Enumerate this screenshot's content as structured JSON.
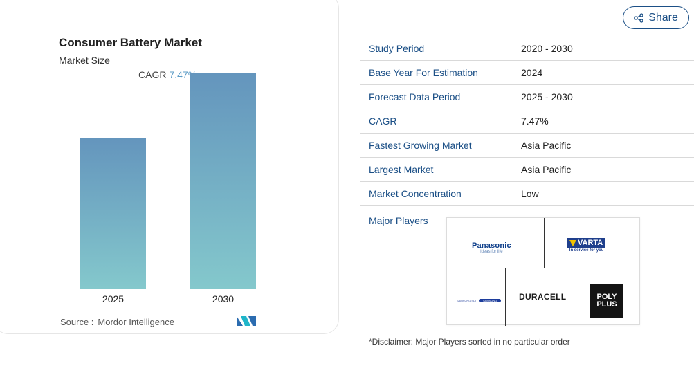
{
  "card": {
    "title": "Consumer Battery Market",
    "subtitle": "Market Size",
    "cagr_label": "CAGR",
    "cagr_value": "7.47%",
    "source_label": "Source :",
    "source_value": "Mordor Intelligence",
    "logo_icon": "mordor-intelligence-logo"
  },
  "chart_data": {
    "type": "bar",
    "categories": [
      "2025",
      "2030"
    ],
    "values": [
      1.0,
      1.43
    ],
    "title": "Consumer Battery Market",
    "subtitle": "Market Size",
    "xlabel": "",
    "ylabel": "",
    "ylim": [
      0,
      1.6
    ],
    "grid": false,
    "colors": {
      "bar_top": "#6495bd",
      "bar_bottom": "#84c8cc"
    }
  },
  "share": {
    "label": "Share",
    "icon": "share-icon"
  },
  "table": {
    "rows": [
      {
        "label": "Study Period",
        "value": "2020 - 2030"
      },
      {
        "label": "Base Year For Estimation",
        "value": "2024"
      },
      {
        "label": "Forecast Data Period",
        "value": "2025 - 2030"
      },
      {
        "label": "CAGR",
        "value": "7.47%"
      },
      {
        "label": "Fastest Growing Market",
        "value": "Asia Pacific"
      },
      {
        "label": "Largest Market",
        "value": "Asia Pacific"
      },
      {
        "label": "Market Concentration",
        "value": "Low"
      }
    ]
  },
  "players": {
    "label": "Major Players",
    "panasonic": {
      "name": "Panasonic",
      "tag": "ideas for life"
    },
    "varta": {
      "name": "VARTA",
      "tag": "In service for you"
    },
    "samsung": {
      "left": "SAMSUNG SDI",
      "oval": "SAMSUNG"
    },
    "duracell": {
      "name": "DURACELL"
    },
    "polyplus": {
      "line1": "POLY",
      "line2": "PLUS"
    }
  },
  "disclaimer": "*Disclaimer: Major Players sorted in no particular order",
  "colors": {
    "accent": "#1b4f86",
    "cagr": "#5b9bc6"
  }
}
